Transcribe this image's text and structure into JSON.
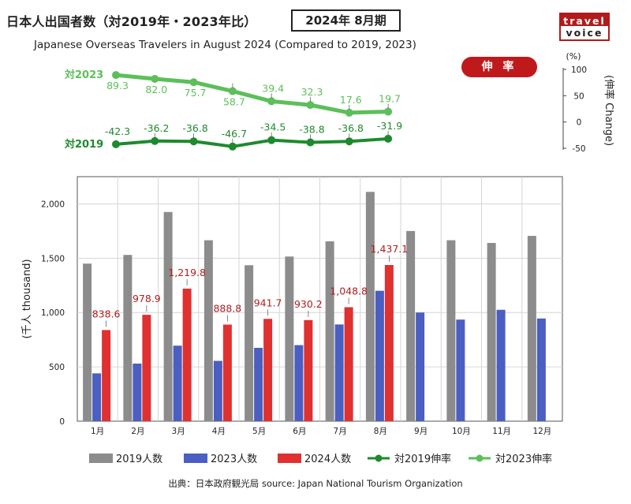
{
  "header": {
    "title": "日本人出国者数（対2019年・2023年比）",
    "period": "2024年 8月期",
    "subtitle": "Japanese Overseas Travelers in August 2024 (Compared to 2019, 2023)"
  },
  "logo": {
    "line1": "travel",
    "line2": "voice"
  },
  "rate_badge": "伸 率",
  "footer": "出典：日本政府観光局  source: Japan National Tourism Organization",
  "chart_data": [
    {
      "type": "line",
      "right_axis_label": "(伸率 Change)",
      "unit_label": "(%)",
      "ylim": [
        -50,
        100
      ],
      "yticks": [
        -50,
        0,
        50,
        100
      ],
      "x": [
        "1月",
        "2月",
        "3月",
        "4月",
        "5月",
        "6月",
        "7月",
        "8月"
      ],
      "series": [
        {
          "name": "対2023伸率",
          "line_label": "対2023",
          "color": "#5cbf5a",
          "values": [
            89.3,
            82.0,
            75.7,
            58.7,
            39.4,
            32.3,
            17.6,
            19.7
          ]
        },
        {
          "name": "対2019伸率",
          "line_label": "対2019",
          "color": "#1e8a2e",
          "values": [
            -42.3,
            -36.2,
            -36.8,
            -46.7,
            -34.5,
            -38.8,
            -36.8,
            -31.9
          ]
        }
      ]
    },
    {
      "type": "bar",
      "ylabel": "(千人 thousand)",
      "ylim": [
        0,
        2250
      ],
      "yticks": [
        0,
        500,
        1000,
        1500,
        2000
      ],
      "ytick_labels": [
        "0",
        "500",
        "1,000",
        "1,500",
        "2,000"
      ],
      "categories": [
        "1月",
        "2月",
        "3月",
        "4月",
        "5月",
        "6月",
        "7月",
        "8月",
        "9月",
        "10月",
        "11月",
        "12月"
      ],
      "series": [
        {
          "name": "2019人数",
          "color": "#8c8c8c",
          "values": [
            1450,
            1530,
            1925,
            1665,
            1435,
            1515,
            1655,
            2110,
            1750,
            1665,
            1640,
            1705
          ]
        },
        {
          "name": "2023人数",
          "color": "#4a5fc1",
          "values": [
            440,
            530,
            695,
            555,
            675,
            700,
            890,
            1200,
            1000,
            935,
            1025,
            945
          ]
        },
        {
          "name": "2024人数",
          "color": "#e03030",
          "values": [
            838.6,
            978.9,
            1219.8,
            888.8,
            941.7,
            930.2,
            1048.8,
            1437.1,
            null,
            null,
            null,
            null
          ],
          "value_labels": [
            "838.6",
            "978.9",
            "1,219.8",
            "888.8",
            "941.7",
            "930.2",
            "1,048.8",
            "1,437.1"
          ]
        }
      ]
    }
  ],
  "legend": [
    {
      "label": "2019人数",
      "kind": "box",
      "color": "#8c8c8c"
    },
    {
      "label": "2023人数",
      "kind": "box",
      "color": "#4a5fc1"
    },
    {
      "label": "2024人数",
      "kind": "box",
      "color": "#e03030"
    },
    {
      "label": "対2019伸率",
      "kind": "line",
      "color": "#1e8a2e"
    },
    {
      "label": "対2023伸率",
      "kind": "line",
      "color": "#5cbf5a"
    }
  ]
}
